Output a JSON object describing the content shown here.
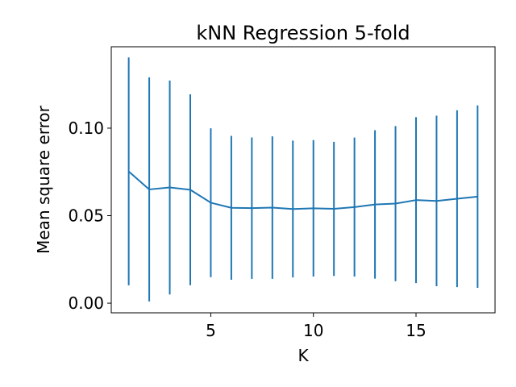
{
  "chart_data": {
    "type": "line",
    "title": "kNN Regression 5-fold",
    "xlabel": "K",
    "ylabel": "Mean square error",
    "xlim": [
      0.15,
      18.85
    ],
    "ylim": [
      -0.0055,
      0.1465
    ],
    "xticks": [
      5,
      10,
      15
    ],
    "xtick_labels": [
      "5",
      "10",
      "15"
    ],
    "yticks": [
      0.0,
      0.05,
      0.1
    ],
    "ytick_labels": [
      "0.00",
      "0.05",
      "0.10"
    ],
    "grid": false,
    "color": "#1f77b4",
    "series": [
      {
        "x": [
          1,
          2,
          3,
          4,
          5,
          6,
          7,
          8,
          9,
          10,
          11,
          12,
          13,
          14,
          15,
          16,
          17,
          18
        ],
        "y": [
          0.0753,
          0.065,
          0.0661,
          0.0648,
          0.0574,
          0.0545,
          0.0543,
          0.0546,
          0.0538,
          0.0542,
          0.0539,
          0.0549,
          0.0564,
          0.0569,
          0.0589,
          0.0584,
          0.0597,
          0.0609
        ],
        "yerr": [
          0.0651,
          0.064,
          0.0611,
          0.0545,
          0.0425,
          0.0411,
          0.0404,
          0.0407,
          0.0391,
          0.039,
          0.0383,
          0.0397,
          0.0424,
          0.0443,
          0.0474,
          0.0487,
          0.0505,
          0.0521
        ]
      }
    ]
  }
}
